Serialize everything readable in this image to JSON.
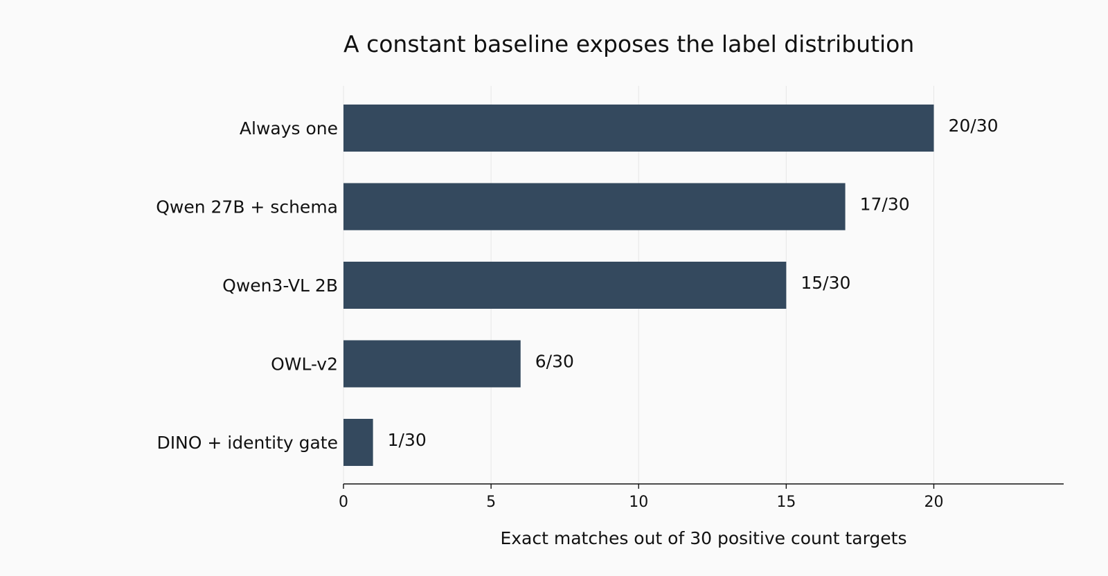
{
  "chart_data": {
    "type": "bar",
    "orientation": "horizontal",
    "title": "A constant baseline exposes the label distribution",
    "xlabel": "Exact matches out of 30 positive count targets",
    "ylabel": "",
    "categories": [
      "Always one",
      "Qwen 27B + schema",
      "Qwen3-VL 2B",
      "OWL-v2",
      "DINO + identity gate"
    ],
    "values": [
      20,
      17,
      15,
      6,
      1
    ],
    "value_labels": [
      "20/30",
      "17/30",
      "15/30",
      "6/30",
      "1/30"
    ],
    "xlim": [
      0,
      24.4
    ],
    "xticks": [
      0,
      5,
      10,
      15,
      20
    ],
    "xtick_labels": [
      "0",
      "5",
      "10",
      "15",
      "20"
    ],
    "grid": "vertical",
    "legend": "none",
    "colors": {
      "bar": "#34495e",
      "grid": "#e6e6e6",
      "axis": "#111111",
      "background": "#fafafa"
    }
  }
}
